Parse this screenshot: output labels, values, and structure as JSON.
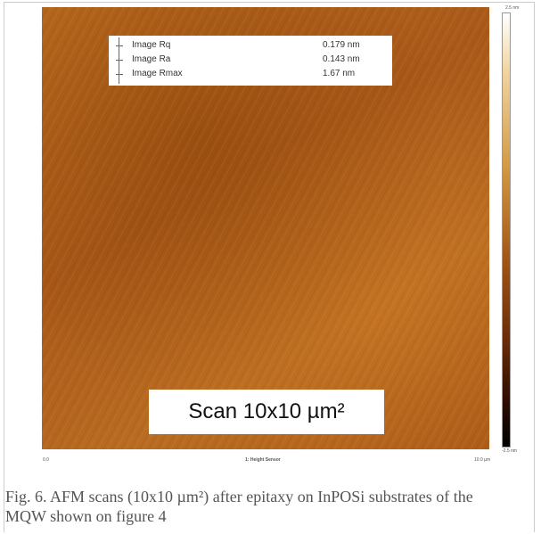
{
  "figure": {
    "stats": [
      {
        "label": "Image Rq",
        "value": "0.179 nm"
      },
      {
        "label": "Image Ra",
        "value": "0.143 nm"
      },
      {
        "label": "Image Rmax",
        "value": "1.67 nm"
      }
    ],
    "scan_label": "Scan 10x10 µm²",
    "colorbar": {
      "max": "2.5 nm",
      "min": "-2.5 nm"
    },
    "axis": {
      "start": "0.0",
      "title": "1: Height Sensor",
      "end": "10.0 µm"
    },
    "caption": "Fig. 6. AFM scans (10x10 µm²) after epitaxy on InPOSi substrates of the MQW shown on figure 4"
  }
}
